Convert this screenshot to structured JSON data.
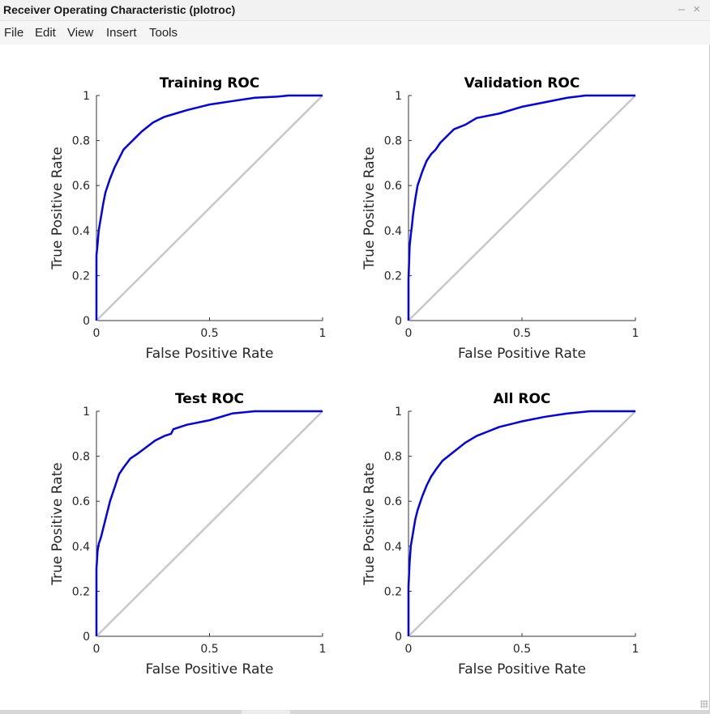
{
  "window": {
    "title": "Receiver Operating Characteristic (plotroc)",
    "controls": {
      "minimize": "–",
      "close": "×"
    }
  },
  "menu": [
    "File",
    "Edit",
    "View",
    "Insert",
    "Tools"
  ],
  "colors": {
    "roc_line": "#0000ee",
    "diagonal": "#c8c8c8",
    "axis": "#333333"
  },
  "chart_data": [
    {
      "type": "line",
      "title": "Training ROC",
      "xlabel": "False Positive Rate",
      "ylabel": "True Positive Rate",
      "xlim": [
        0,
        1
      ],
      "ylim": [
        0,
        1
      ],
      "xticks": [
        "0",
        "0.5",
        "1"
      ],
      "yticks": [
        "0",
        "0.2",
        "0.4",
        "0.6",
        "0.8",
        "1"
      ],
      "series": [
        {
          "x": [
            0,
            0,
            0.005,
            0.01,
            0.02,
            0.03,
            0.04,
            0.06,
            0.08,
            0.1,
            0.12,
            0.14,
            0.17,
            0.2,
            0.25,
            0.3,
            0.35,
            0.4,
            0.5,
            0.6,
            0.7,
            0.8,
            0.85,
            1
          ],
          "y": [
            0,
            0.29,
            0.34,
            0.4,
            0.46,
            0.52,
            0.57,
            0.63,
            0.68,
            0.72,
            0.76,
            0.78,
            0.81,
            0.84,
            0.88,
            0.905,
            0.92,
            0.935,
            0.96,
            0.975,
            0.99,
            0.995,
            1,
            1
          ]
        },
        {
          "x": [
            0,
            1
          ],
          "y": [
            0,
            1
          ]
        }
      ]
    },
    {
      "type": "line",
      "title": "Validation ROC",
      "xlabel": "False Positive Rate",
      "ylabel": "True Positive Rate",
      "xlim": [
        0,
        1
      ],
      "ylim": [
        0,
        1
      ],
      "xticks": [
        "0",
        "0.5",
        "1"
      ],
      "yticks": [
        "0",
        "0.2",
        "0.4",
        "0.6",
        "0.8",
        "1"
      ],
      "series": [
        {
          "x": [
            0,
            0,
            0.005,
            0.01,
            0.015,
            0.02,
            0.03,
            0.04,
            0.05,
            0.06,
            0.08,
            0.1,
            0.12,
            0.14,
            0.15,
            0.17,
            0.2,
            0.25,
            0.3,
            0.4,
            0.5,
            0.6,
            0.7,
            0.78,
            0.8,
            1
          ],
          "y": [
            0,
            0.18,
            0.33,
            0.38,
            0.42,
            0.47,
            0.54,
            0.6,
            0.63,
            0.66,
            0.71,
            0.74,
            0.76,
            0.79,
            0.8,
            0.82,
            0.85,
            0.87,
            0.9,
            0.92,
            0.95,
            0.97,
            0.99,
            1,
            1,
            1
          ]
        },
        {
          "x": [
            0,
            1
          ],
          "y": [
            0,
            1
          ]
        }
      ]
    },
    {
      "type": "line",
      "title": "Test ROC",
      "xlabel": "False Positive Rate",
      "ylabel": "True Positive Rate",
      "xlim": [
        0,
        1
      ],
      "ylim": [
        0,
        1
      ],
      "xticks": [
        "0",
        "0.5",
        "1"
      ],
      "yticks": [
        "0",
        "0.2",
        "0.4",
        "0.6",
        "0.8",
        "1"
      ],
      "series": [
        {
          "x": [
            0,
            0,
            0.005,
            0.01,
            0.02,
            0.04,
            0.06,
            0.08,
            0.1,
            0.12,
            0.15,
            0.18,
            0.22,
            0.26,
            0.3,
            0.33,
            0.34,
            0.4,
            0.5,
            0.6,
            0.7,
            0.8,
            1
          ],
          "y": [
            0,
            0.3,
            0.38,
            0.41,
            0.44,
            0.52,
            0.6,
            0.66,
            0.72,
            0.75,
            0.79,
            0.81,
            0.84,
            0.87,
            0.89,
            0.9,
            0.92,
            0.94,
            0.96,
            0.99,
            1,
            1,
            1
          ]
        },
        {
          "x": [
            0,
            1
          ],
          "y": [
            0,
            1
          ]
        }
      ]
    },
    {
      "type": "line",
      "title": "All ROC",
      "xlabel": "False Positive Rate",
      "ylabel": "True Positive Rate",
      "xlim": [
        0,
        1
      ],
      "ylim": [
        0,
        1
      ],
      "xticks": [
        "0",
        "0.5",
        "1"
      ],
      "yticks": [
        "0",
        "0.2",
        "0.4",
        "0.6",
        "0.8",
        "1"
      ],
      "series": [
        {
          "x": [
            0,
            0,
            0.005,
            0.01,
            0.02,
            0.03,
            0.04,
            0.06,
            0.08,
            0.1,
            0.12,
            0.15,
            0.2,
            0.25,
            0.3,
            0.35,
            0.4,
            0.5,
            0.6,
            0.7,
            0.8,
            0.85,
            1
          ],
          "y": [
            0,
            0.22,
            0.33,
            0.4,
            0.46,
            0.52,
            0.56,
            0.62,
            0.67,
            0.71,
            0.74,
            0.78,
            0.82,
            0.86,
            0.89,
            0.91,
            0.93,
            0.955,
            0.975,
            0.99,
            1,
            1,
            1
          ]
        },
        {
          "x": [
            0,
            1
          ],
          "y": [
            0,
            1
          ]
        }
      ]
    }
  ]
}
